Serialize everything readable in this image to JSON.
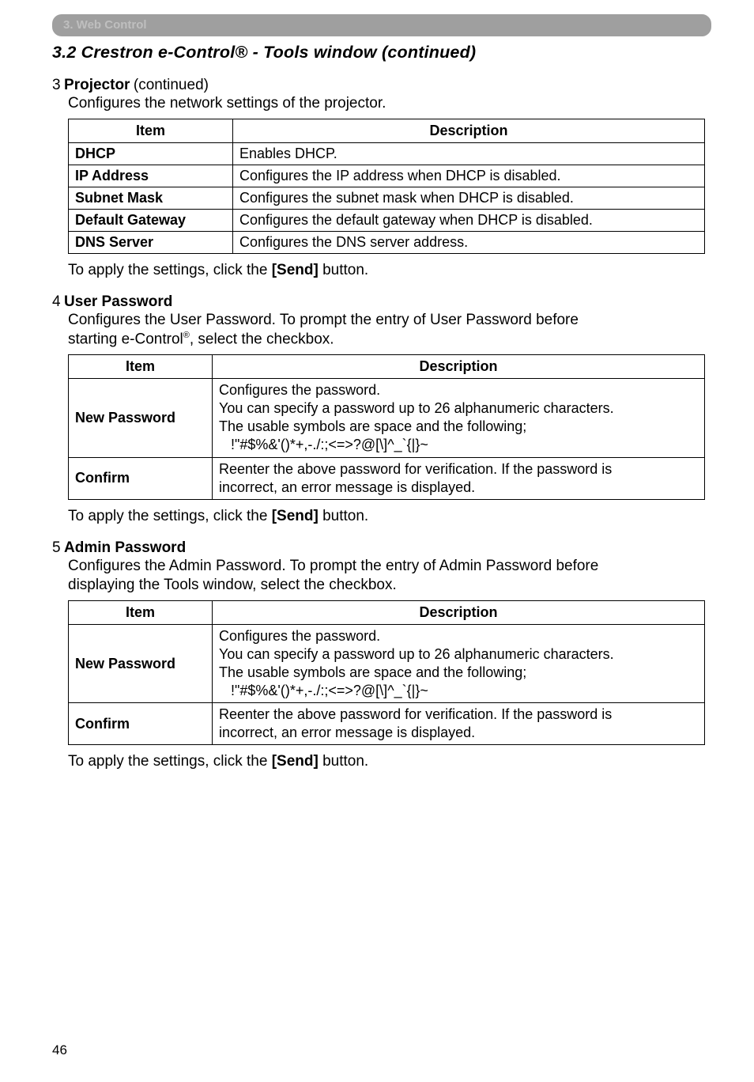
{
  "header": {
    "text": "3. Web Control"
  },
  "title": {
    "text": "3.2 Crestron e-Control® - Tools window (continued)"
  },
  "sec3": {
    "num": "3",
    "label": "Projector",
    "cont": " (continued)",
    "intro": "Configures the network settings of the projector.",
    "th_item": "Item",
    "th_desc": "Description",
    "rows": [
      {
        "item": "DHCP",
        "desc": "Enables DHCP."
      },
      {
        "item": "IP Address",
        "desc": "Configures the IP address when DHCP is disabled."
      },
      {
        "item": "Subnet Mask",
        "desc": "Configures the subnet mask when DHCP is disabled."
      },
      {
        "item": "Default Gateway",
        "desc": "Configures the default gateway when DHCP is disabled."
      },
      {
        "item": "DNS Server",
        "desc": "Configures the DNS server address."
      }
    ],
    "apply_a": "To apply the settings, click the ",
    "apply_b": "[Send]",
    "apply_c": " button."
  },
  "sec4": {
    "num": "4",
    "label": "User Password",
    "intro1": "Configures the User Password. To prompt the entry of User Password before",
    "intro2a": "starting e-Control",
    "intro2sup": "®",
    "intro2b": ", select the checkbox.",
    "th_item": "Item",
    "th_desc": "Description",
    "r1_item": "New Password",
    "r1_l1": "Configures the password.",
    "r1_l2": "You can specify a password up to 26 alphanumeric characters.",
    "r1_l3": "The usable symbols are space and the following;",
    "r1_l4": "   !\"#$%&'()*+,-./:;<=>?@[\\]^_`{|}~",
    "r2_item": "Confirm",
    "r2_l1": "Reenter the above password for verification. If the password is",
    "r2_l2": "incorrect, an error message is displayed.",
    "apply_a": "To apply the settings, click the ",
    "apply_b": "[Send]",
    "apply_c": " button."
  },
  "sec5": {
    "num": "5",
    "label": "Admin Password",
    "intro1": "Configures the Admin Password. To prompt the entry of Admin Password before",
    "intro2": "displaying the Tools window, select the checkbox.",
    "th_item": "Item",
    "th_desc": "Description",
    "r1_item": "New Password",
    "r1_l1": "Configures the password.",
    "r1_l2": "You can specify a password up to 26 alphanumeric characters.",
    "r1_l3": "The usable symbols are space and the following;",
    "r1_l4": "   !\"#$%&'()*+,-./:;<=>?@[\\]^_`{|}~",
    "r2_item": "Confirm",
    "r2_l1": "Reenter the above password for verification. If the password is",
    "r2_l2": "incorrect, an error message is displayed.",
    "apply_a": "To apply the settings, click the ",
    "apply_b": "[Send]",
    "apply_c": " button."
  },
  "page": "46"
}
